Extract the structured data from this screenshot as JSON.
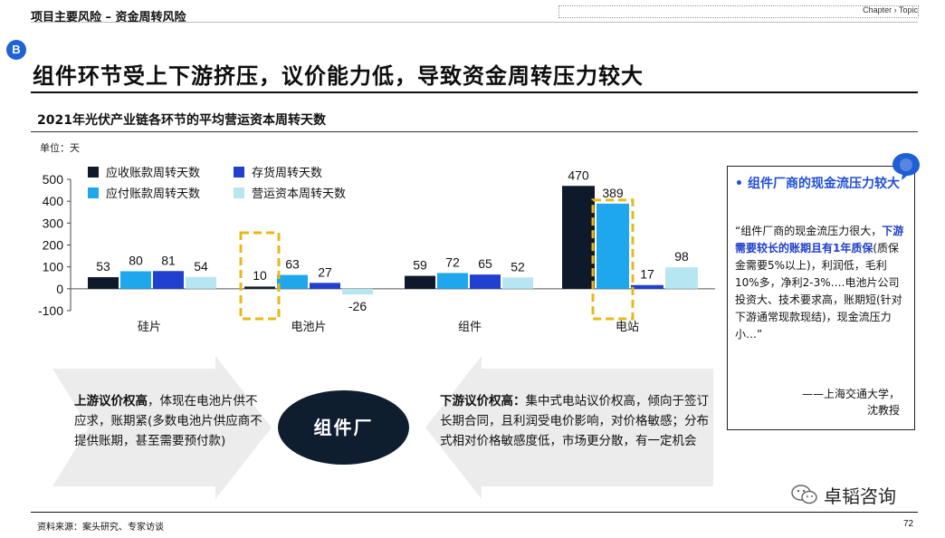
{
  "header": {
    "section_title": "项目主要风险 – 资金周转风险",
    "nav": "Chapter › Topic"
  },
  "badge": "B",
  "headline": "组件环节受上下游挤压，议价能力低，导致资金周转压力较大",
  "chart_title": "2021年光伏产业链各环节的平均营运资本周转天数",
  "unit_label": "单位：天",
  "colors": {
    "receivable": "#0e1a2b",
    "payable": "#1ea7ec",
    "inventory": "#2240d0",
    "working_capital": "#b6e6f2",
    "highlight": "#e8b81b",
    "accent_blue": "#1f4fd6"
  },
  "chart_data": {
    "type": "bar",
    "categories": [
      "硅片",
      "电池片",
      "组件",
      "电站"
    ],
    "series": [
      {
        "name": "应收账款周转天数",
        "values": [
          53,
          10,
          59,
          470
        ],
        "labels": [
          "53",
          "10",
          "59",
          "470"
        ]
      },
      {
        "name": "应付账款周转天数",
        "values": [
          80,
          63,
          72,
          389
        ],
        "labels": [
          "80",
          "63",
          "72",
          "389"
        ]
      },
      {
        "name": "存货周转天数",
        "values": [
          81,
          27,
          65,
          17
        ],
        "labels": [
          "81",
          "27",
          "65",
          "17"
        ]
      },
      {
        "name": "营运资本周转天数",
        "values": [
          54,
          -26,
          52,
          98
        ],
        "labels": [
          "54",
          "-26",
          "52",
          "98"
        ]
      }
    ],
    "ylim": [
      -100,
      500
    ],
    "yticks": [
      "500",
      "400",
      "300",
      "200",
      "100",
      "0",
      "-100"
    ],
    "legend": [
      "应收账款周转天数",
      "存货周转天数",
      "应付账款周转天数",
      "营运资本周转天数"
    ],
    "legend_position": "top",
    "highlighted": [
      {
        "category": "电池片",
        "series": "应收账款周转天数"
      },
      {
        "category": "电站",
        "series": "应付账款周转天数"
      }
    ],
    "grid": false
  },
  "quote": {
    "heading": "组件厂商的现金流压力较大",
    "bullet": "•",
    "body_1": "“组件厂商的现金流压力很大，",
    "body_hl": "下游需要较长的账期且有1年质保",
    "body_2": "(质保金需要5%以上)，利润低，毛利10%多，净利2-3%….电池片公司投资大、技术要求高，账期短(针对下游通常现款现结)，现金流压力小…”",
    "attribution_1": "——上海交通大学，",
    "attribution_2": "沈教授"
  },
  "left_arrow": {
    "bold": "上游议价权高",
    "text": "，体现在电池片供不应求，账期紧(多数电池片供应商不提供账期，甚至需要预付款)"
  },
  "center": "组件厂",
  "right_arrow": {
    "bold": "下游议价权高：",
    "text": "集中式电站议价权高，倾向于签订长期合同，且利润受电价影响，对价格敏感；分布式相对价格敏感度低，市场更分散，有一定机会"
  },
  "footer": {
    "source": "资料来源：案头研究、专家访谈",
    "page": "72",
    "watermark": "卓韬咨询"
  }
}
